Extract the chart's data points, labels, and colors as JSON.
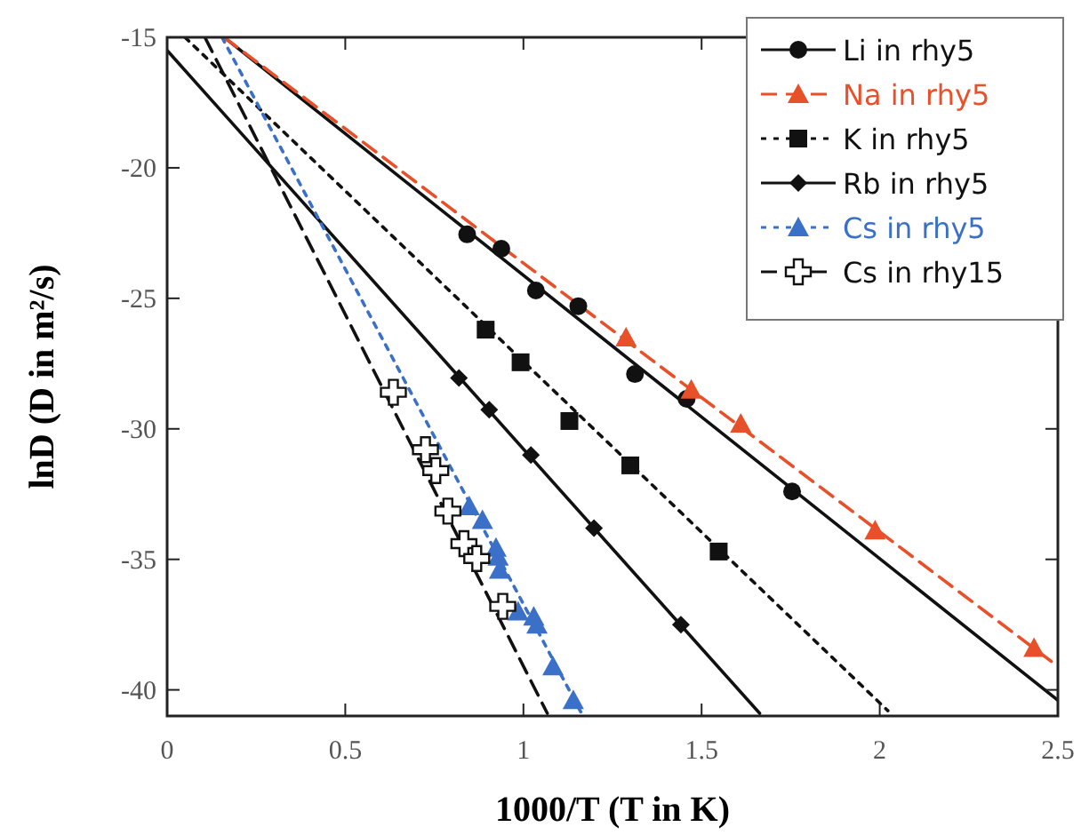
{
  "chart_data": {
    "type": "scatter",
    "xlabel": "1000/T (T in K)",
    "ylabel": "lnD (D in m²/s)",
    "xlim": [
      0,
      2.5
    ],
    "ylim": [
      -41,
      -15
    ],
    "xticks": [
      0,
      0.5,
      1,
      1.5,
      2,
      2.5
    ],
    "yticks": [
      -40,
      -35,
      -30,
      -25,
      -20,
      -15
    ],
    "grid": false,
    "legend": "top right",
    "series": [
      {
        "type": "line",
        "color": "#111111",
        "line_style": "solid",
        "marker": "none",
        "x": [
          0.16,
          2.5
        ],
        "values": [
          -15,
          -40.4
        ]
      },
      {
        "type": "line",
        "color": "#e8502a",
        "line_style": "dashed",
        "marker": "none",
        "x": [
          0.16,
          2.5
        ],
        "values": [
          -15,
          -39.1
        ]
      },
      {
        "type": "line",
        "color": "#111111",
        "line_style": "dotted",
        "marker": "none",
        "x": [
          0.05,
          2.023
        ],
        "values": [
          -15,
          -40.8
        ]
      },
      {
        "type": "line",
        "color": "#111111",
        "line_style": "solid",
        "marker": "none",
        "x": [
          0,
          1.663
        ],
        "values": [
          -15.5,
          -40.9
        ]
      },
      {
        "type": "line",
        "color": "#3a70c8",
        "line_style": "dotted",
        "marker": "none",
        "x": [
          0.154,
          1.163
        ],
        "values": [
          -15,
          -40.9
        ]
      },
      {
        "type": "line",
        "color": "#111111",
        "line_style": "dashed",
        "marker": "none",
        "x": [
          0.106,
          1.067
        ],
        "values": [
          -15,
          -40.9
        ]
      },
      {
        "name": "Li in rhy5",
        "color": "#111111",
        "marker": "circle",
        "line_style": "solid",
        "x": [
          0.842,
          0.938,
          1.035,
          1.154,
          1.313,
          1.458,
          1.754
        ],
        "values": [
          -22.55,
          -23.1,
          -24.7,
          -25.3,
          -27.9,
          -28.85,
          -32.4
        ]
      },
      {
        "name": "Na in rhy5",
        "color": "#e8502a",
        "marker": "triangle",
        "line_style": "dashed",
        "x": [
          1.288,
          1.471,
          1.61,
          1.987,
          2.433
        ],
        "values": [
          -26.5,
          -28.5,
          -29.8,
          -33.9,
          -38.4
        ]
      },
      {
        "name": "K in rhy5",
        "color": "#111111",
        "marker": "square",
        "line_style": "dotted",
        "x": [
          0.894,
          0.992,
          1.129,
          1.3,
          1.548
        ],
        "values": [
          -26.2,
          -27.45,
          -29.7,
          -31.4,
          -34.7
        ]
      },
      {
        "name": "Rb in rhy5",
        "color": "#111111",
        "marker": "diamond",
        "line_style": "solid",
        "x": [
          0.819,
          0.904,
          1.021,
          1.198,
          1.442
        ],
        "values": [
          -28.05,
          -29.27,
          -31.0,
          -33.8,
          -37.5
        ]
      },
      {
        "name": "Cs in rhy5",
        "color": "#3a70c8",
        "marker": "triangle",
        "line_style": "dotted",
        "x": [
          0.848,
          0.885,
          0.923,
          0.929,
          0.933,
          0.985,
          1.029,
          1.038,
          1.083,
          1.14
        ],
        "values": [
          -32.97,
          -33.5,
          -34.56,
          -34.9,
          -35.4,
          -37.0,
          -37.2,
          -37.5,
          -39.1,
          -40.4
        ]
      },
      {
        "name": "Cs in rhy15",
        "color": "#111111",
        "marker": "cross",
        "line_style": "dashed",
        "x": [
          0.635,
          0.725,
          0.754,
          0.788,
          0.833,
          0.869,
          0.942
        ],
        "values": [
          -28.6,
          -30.8,
          -31.6,
          -33.15,
          -34.4,
          -34.97,
          -36.8
        ]
      }
    ]
  }
}
